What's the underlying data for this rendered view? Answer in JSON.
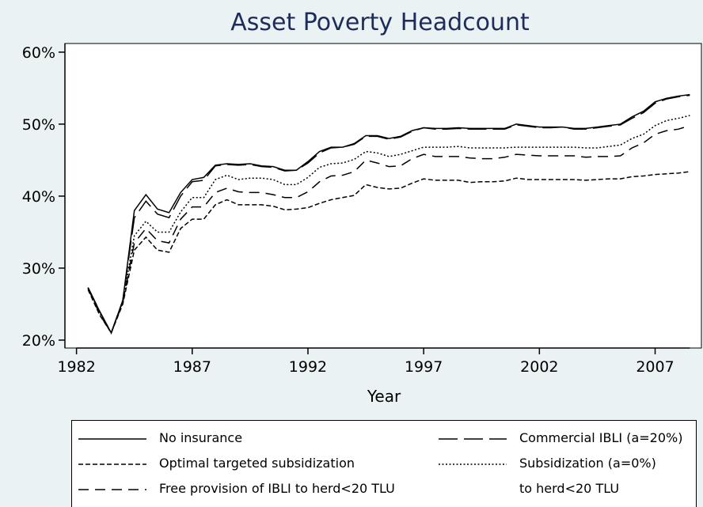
{
  "chart_data": {
    "type": "line",
    "title": "Asset Poverty Headcount",
    "x_label": "Year",
    "x": [
      1982.5,
      1983,
      1983.5,
      1984,
      1984.5,
      1985,
      1985.5,
      1986,
      1986.5,
      1987,
      1987.5,
      1988,
      1988.5,
      1989,
      1989.5,
      1990,
      1990.5,
      1991,
      1991.5,
      1992,
      1992.5,
      1993,
      1993.5,
      1994,
      1994.5,
      1995,
      1995.5,
      1996,
      1996.5,
      1997,
      1997.5,
      1998,
      1998.5,
      1999,
      1999.5,
      2000,
      2000.5,
      2001,
      2001.5,
      2002,
      2002.5,
      2003,
      2003.5,
      2004,
      2004.5,
      2005,
      2005.5,
      2006,
      2006.5,
      2007,
      2007.5,
      2008,
      2008.5
    ],
    "series": [
      {
        "name": "No insurance",
        "color": "#000000",
        "dash": "solid",
        "values": [
          27.3,
          24,
          21,
          25.5,
          38,
          40.2,
          38.2,
          37.7,
          40.5,
          42.3,
          42.6,
          44.3,
          44.5,
          44.4,
          44.5,
          44.2,
          44.1,
          43.6,
          43.6,
          44.8,
          46.2,
          46.8,
          46.8,
          47.3,
          48.4,
          48.4,
          48,
          48.3,
          49.1,
          49.5,
          49.4,
          49.4,
          49.5,
          49.4,
          49.4,
          49.4,
          49.4,
          50,
          49.8,
          49.6,
          49.6,
          49.6,
          49.4,
          49.4,
          49.6,
          49.8,
          50,
          51,
          51.8,
          53.1,
          53.6,
          53.9,
          54.1
        ]
      },
      {
        "name": "Commercial IBLI (a=20%)",
        "color": "#000000",
        "dash": "longdash",
        "values": [
          27.3,
          24,
          21,
          25.5,
          37,
          39.3,
          37.5,
          37,
          40,
          42,
          42.2,
          44.2,
          44.4,
          44.3,
          44.4,
          44.1,
          44,
          43.5,
          43.6,
          44.6,
          46,
          46.7,
          46.8,
          47.2,
          48.3,
          48.3,
          47.9,
          48.2,
          49,
          49.5,
          49.3,
          49.3,
          49.4,
          49.3,
          49.3,
          49.3,
          49.3,
          49.9,
          49.7,
          49.5,
          49.5,
          49.6,
          49.3,
          49.3,
          49.5,
          49.7,
          49.9,
          50.8,
          51.6,
          52.9,
          53.5,
          53.8,
          54
        ]
      },
      {
        "name": "Optimal targeted subsidization",
        "color": "#000000",
        "dash": "shortdash",
        "values": [
          27,
          23.5,
          21,
          25,
          32.5,
          34.3,
          32.5,
          32.2,
          35.5,
          36.8,
          36.8,
          38.8,
          39.5,
          38.8,
          38.8,
          38.8,
          38.6,
          38.1,
          38.2,
          38.4,
          39,
          39.5,
          39.8,
          40.1,
          41.6,
          41.2,
          41,
          41.1,
          41.8,
          42.4,
          42.2,
          42.2,
          42.2,
          41.9,
          42,
          42,
          42.1,
          42.5,
          42.3,
          42.3,
          42.3,
          42.3,
          42.3,
          42.2,
          42.3,
          42.4,
          42.4,
          42.7,
          42.8,
          43,
          43.1,
          43.2,
          43.4
        ]
      },
      {
        "name": "Subsidization (a=0%)\nto herd<20 TLU",
        "color": "#000000",
        "dash": "dot",
        "values": [
          27.2,
          23.8,
          21,
          25.3,
          34.5,
          36.5,
          35,
          35,
          37.8,
          39.8,
          39.8,
          42.3,
          42.9,
          42.3,
          42.5,
          42.5,
          42.3,
          41.6,
          41.6,
          42.6,
          44,
          44.5,
          44.6,
          45.1,
          46.2,
          46,
          45.5,
          45.8,
          46.3,
          46.8,
          46.8,
          46.8,
          46.9,
          46.7,
          46.7,
          46.7,
          46.7,
          46.8,
          46.8,
          46.8,
          46.8,
          46.8,
          46.8,
          46.7,
          46.7,
          46.9,
          47.1,
          48,
          48.6,
          49.8,
          50.5,
          50.8,
          51.2
        ]
      },
      {
        "name": "Free provision of IBLI to herd<20 TLU",
        "color": "#000000",
        "dash": "dash",
        "values": [
          27.2,
          23.6,
          21,
          25.2,
          33.5,
          35.5,
          33.8,
          33.5,
          36.8,
          38.5,
          38.5,
          40.5,
          41.1,
          40.6,
          40.5,
          40.5,
          40.2,
          39.8,
          39.8,
          40.6,
          42,
          42.8,
          42.9,
          43.4,
          45,
          44.6,
          44.1,
          44.2,
          45.2,
          45.8,
          45.5,
          45.5,
          45.5,
          45.3,
          45.2,
          45.2,
          45.4,
          45.8,
          45.7,
          45.6,
          45.6,
          45.6,
          45.6,
          45.4,
          45.5,
          45.5,
          45.6,
          46.7,
          47.4,
          48.6,
          49.1,
          49.3,
          49.8
        ]
      }
    ],
    "xlim": [
      1981.5,
      2009
    ],
    "xticks": [
      1982,
      1987,
      1992,
      1997,
      2002,
      2007
    ],
    "ylim": [
      18.9,
      61.2
    ],
    "yticks": [
      {
        "value": 20,
        "label": "20%"
      },
      {
        "value": 30,
        "label": "30%"
      },
      {
        "value": 40,
        "label": "40%"
      },
      {
        "value": 50,
        "label": "50%"
      },
      {
        "value": 60,
        "label": "60%"
      }
    ],
    "grid": false,
    "legend": "bottom"
  }
}
